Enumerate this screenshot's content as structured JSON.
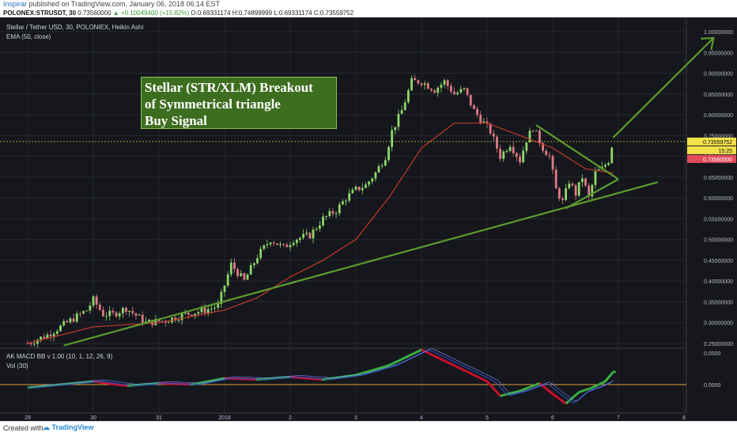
{
  "header": {
    "author": "Inspirar",
    "published": "published on TradingView.com, January 06, 2018 06:14 EST"
  },
  "ticker": {
    "symbol": "POLONEX:STRUSDT, 30",
    "last": "0.73560000",
    "change": "▲ +0.10049400 (+15.82%)",
    "ohlc": "O:0.69331174 H:0.74899999 L:0.69331174 C:0.73559752"
  },
  "legend": {
    "main_title": "Stellar / Tether USD, 30, POLONIEX, Heikin Ashi",
    "ema": "EMA (50, close)",
    "macd": "AK MACD BB v 1.00 (10, 1, 12, 26, 9)",
    "vol": "Vol (30)"
  },
  "annotation": {
    "line1": "Stellar (STR/XLM) Breakout",
    "line2": "of Symmetrical triangle",
    "line3": "Buy Signal"
  },
  "badges": {
    "price": "0.73559752",
    "countdown": "15:25",
    "last": "0.73560000"
  },
  "footer": {
    "created": "Created with",
    "brand": "TradingView"
  },
  "colors": {
    "bull": "#8fd66b",
    "bear": "#e07a86",
    "ema": "#c0392b",
    "trendline": "#5d9b2f",
    "macd_pos": "#3cb043",
    "macd_neg": "#c8102e",
    "signal": "#3050d0",
    "zero": "#e6a23c"
  },
  "chart_data": {
    "type": "candlestick",
    "ylim": [
      0.25,
      1.0
    ],
    "y_ticks": [
      "1.00000000",
      "0.95000000",
      "0.90000000",
      "0.85000000",
      "0.80000000",
      "0.75000000",
      "0.70000000",
      "0.65000000",
      "0.60000000",
      "0.55000000",
      "0.50000000",
      "0.45000000",
      "0.40000000",
      "0.35000000",
      "0.30000000",
      "0.25000000"
    ],
    "x_ticks": [
      "29",
      "30",
      "31",
      "2018",
      "2",
      "3",
      "4",
      "5",
      "6",
      "7",
      "8"
    ],
    "macd_ticks": [
      "0.0500",
      "0.0000"
    ],
    "price_path": [
      [
        0.0,
        0.25
      ],
      [
        0.3,
        0.27
      ],
      [
        0.6,
        0.3
      ],
      [
        0.9,
        0.33
      ],
      [
        1.0,
        0.355
      ],
      [
        1.15,
        0.32
      ],
      [
        1.3,
        0.32
      ],
      [
        1.5,
        0.335
      ],
      [
        1.8,
        0.3
      ],
      [
        2.1,
        0.305
      ],
      [
        2.4,
        0.32
      ],
      [
        2.7,
        0.33
      ],
      [
        2.9,
        0.34
      ],
      [
        3.0,
        0.39
      ],
      [
        3.1,
        0.44
      ],
      [
        3.3,
        0.4
      ],
      [
        3.5,
        0.46
      ],
      [
        3.7,
        0.5
      ],
      [
        3.9,
        0.48
      ],
      [
        4.05,
        0.5
      ],
      [
        4.3,
        0.51
      ],
      [
        4.5,
        0.55
      ],
      [
        4.7,
        0.57
      ],
      [
        4.85,
        0.6
      ],
      [
        5.0,
        0.62
      ],
      [
        5.15,
        0.63
      ],
      [
        5.3,
        0.66
      ],
      [
        5.45,
        0.7
      ],
      [
        5.55,
        0.76
      ],
      [
        5.7,
        0.81
      ],
      [
        5.85,
        0.88
      ],
      [
        6.0,
        0.88
      ],
      [
        6.2,
        0.86
      ],
      [
        6.35,
        0.88
      ],
      [
        6.5,
        0.85
      ],
      [
        6.65,
        0.86
      ],
      [
        6.8,
        0.81
      ],
      [
        6.95,
        0.78
      ],
      [
        7.05,
        0.76
      ],
      [
        7.2,
        0.7
      ],
      [
        7.35,
        0.73
      ],
      [
        7.5,
        0.69
      ],
      [
        7.6,
        0.74
      ],
      [
        7.7,
        0.77
      ],
      [
        7.85,
        0.72
      ],
      [
        7.95,
        0.7
      ],
      [
        8.05,
        0.62
      ],
      [
        8.15,
        0.59
      ],
      [
        8.25,
        0.64
      ],
      [
        8.35,
        0.61
      ],
      [
        8.45,
        0.65
      ],
      [
        8.55,
        0.6
      ],
      [
        8.65,
        0.66
      ],
      [
        8.75,
        0.67
      ],
      [
        8.85,
        0.69
      ],
      [
        8.92,
        0.74
      ]
    ],
    "ema_path": [
      [
        0.0,
        0.25
      ],
      [
        1.0,
        0.29
      ],
      [
        2.0,
        0.3
      ],
      [
        3.0,
        0.33
      ],
      [
        3.5,
        0.36
      ],
      [
        4.0,
        0.41
      ],
      [
        4.5,
        0.45
      ],
      [
        5.0,
        0.5
      ],
      [
        5.5,
        0.6
      ],
      [
        6.0,
        0.72
      ],
      [
        6.5,
        0.78
      ],
      [
        7.0,
        0.78
      ],
      [
        7.5,
        0.75
      ],
      [
        8.0,
        0.72
      ],
      [
        8.5,
        0.67
      ],
      [
        8.92,
        0.66
      ]
    ],
    "lines": [
      {
        "name": "trend-lower",
        "from": [
          0.55,
          0.245
        ],
        "to": [
          9.6,
          0.638
        ]
      },
      {
        "name": "triangle-top",
        "from": [
          7.75,
          0.775
        ],
        "to": [
          9.0,
          0.645
        ]
      },
      {
        "name": "triangle-bottom",
        "from": [
          8.2,
          0.575
        ],
        "to": [
          9.0,
          0.645
        ]
      },
      {
        "name": "breakout-arrow",
        "from": [
          8.92,
          0.745
        ],
        "to": [
          10.45,
          0.985
        ]
      }
    ],
    "current_price": 0.7356,
    "macd_path": [
      [
        0.0,
        -0.005
      ],
      [
        0.5,
        0.0
      ],
      [
        1.0,
        0.005
      ],
      [
        1.5,
        -0.002
      ],
      [
        2.0,
        0.002
      ],
      [
        2.5,
        0.0
      ],
      [
        3.0,
        0.01
      ],
      [
        3.5,
        0.008
      ],
      [
        4.0,
        0.012
      ],
      [
        4.5,
        0.008
      ],
      [
        5.0,
        0.015
      ],
      [
        5.5,
        0.03
      ],
      [
        6.0,
        0.055
      ],
      [
        6.3,
        0.04
      ],
      [
        6.6,
        0.025
      ],
      [
        7.0,
        0.005
      ],
      [
        7.2,
        -0.018
      ],
      [
        7.5,
        -0.01
      ],
      [
        7.8,
        0.002
      ],
      [
        8.0,
        -0.015
      ],
      [
        8.2,
        -0.03
      ],
      [
        8.4,
        -0.012
      ],
      [
        8.6,
        -0.005
      ],
      [
        8.8,
        0.005
      ],
      [
        8.92,
        0.02
      ]
    ]
  }
}
